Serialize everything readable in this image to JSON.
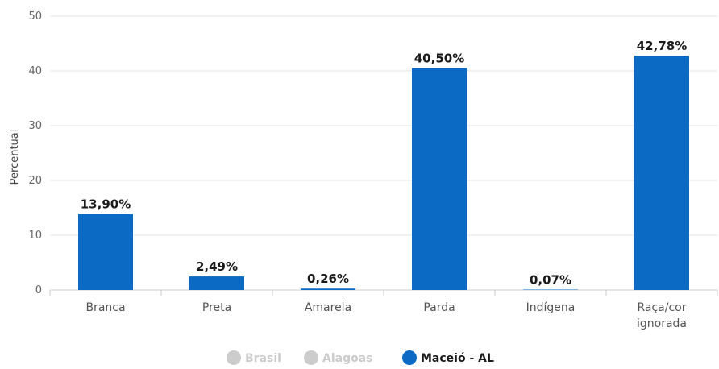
{
  "chart_data": {
    "type": "bar",
    "ylabel": "Percentual",
    "ylim": [
      0,
      50
    ],
    "yticks": [
      0,
      10,
      20,
      30,
      40,
      50
    ],
    "categories": [
      "Branca",
      "Preta",
      "Amarela",
      "Parda",
      "Indígena",
      "Raça/cor ignorada"
    ],
    "category_lines": [
      [
        "Branca"
      ],
      [
        "Preta"
      ],
      [
        "Amarela"
      ],
      [
        "Parda"
      ],
      [
        "Indígena"
      ],
      [
        "Raça/cor",
        "ignorada"
      ]
    ],
    "series": [
      {
        "name": "Maceió - AL",
        "color": "#0a6ac4",
        "values": [
          13.9,
          2.49,
          0.26,
          40.5,
          0.07,
          42.78
        ]
      }
    ],
    "data_labels": [
      "13,90%",
      "2,49%",
      "0,26%",
      "40,50%",
      "0,07%",
      "42,78%"
    ],
    "grid": true,
    "legend_position": "bottom-center",
    "legend": [
      {
        "name": "Brasil",
        "color": "#cccccc",
        "active": false
      },
      {
        "name": "Alagoas",
        "color": "#cccccc",
        "active": false
      },
      {
        "name": "Maceió - AL",
        "color": "#0a6ac4",
        "active": true
      }
    ]
  }
}
